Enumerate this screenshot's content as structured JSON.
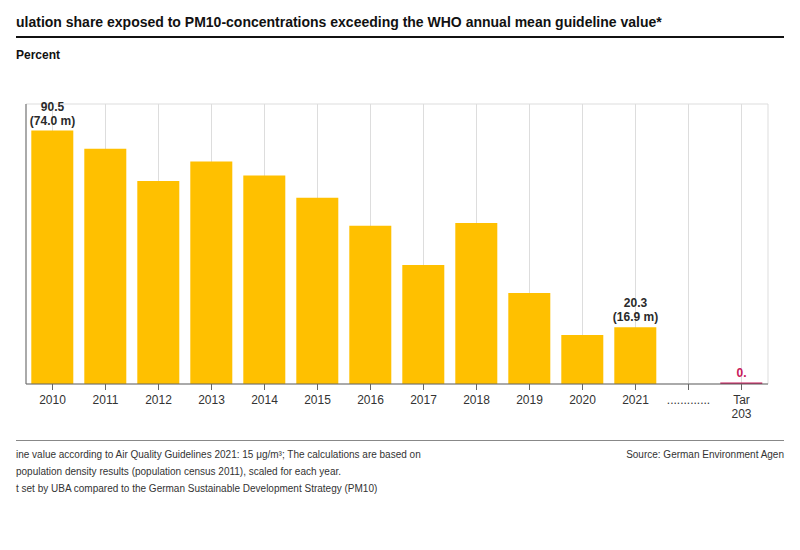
{
  "chart_data": {
    "type": "bar",
    "title": "ulation share exposed to PM10-concentrations exceeding the WHO annual mean guideline value*",
    "y_label": "Percent",
    "categories": [
      "2010",
      "2011",
      "2012",
      "2013",
      "2014",
      "2015",
      "2016",
      "2017",
      "2018",
      "2019",
      "2020",
      "2021",
      ".............",
      "Tar\n203"
    ],
    "values": [
      90.5,
      84.0,
      72.5,
      79.5,
      74.5,
      66.5,
      56.5,
      42.5,
      57.5,
      32.5,
      17.5,
      20.3,
      null,
      0.5
    ],
    "colors": [
      "#FFC000",
      "#FFC000",
      "#FFC000",
      "#FFC000",
      "#FFC000",
      "#FFC000",
      "#FFC000",
      "#FFC000",
      "#FFC000",
      "#FFC000",
      "#FFC000",
      "#FFC000",
      null,
      "#C8185A"
    ],
    "ylim": [
      0,
      100
    ],
    "yticks": [
      0,
      10,
      20,
      30,
      40,
      50,
      60,
      70,
      80,
      90,
      100
    ],
    "grid": true,
    "tick_labels": "x",
    "annotations": [
      {
        "text": "90.5\n(74.0 m)",
        "category": "2010",
        "color": "#2A2A2A"
      },
      {
        "text": "20.3\n(16.9 m)",
        "category": "2021",
        "color": "#2A2A2A"
      },
      {
        "text": "0.",
        "category": "Tar\n203",
        "color": "#C8185A"
      }
    ],
    "notes": [
      "ine value according to Air Quality Guidelines 2021: 15 μg/m³; The calculations are based on",
      "population density results (population census 2011), scaled for each year.",
      "t set by UBA compared to the German Sustainable Development Strategy (PM10)"
    ],
    "source": "Source: German Environment Agen"
  }
}
